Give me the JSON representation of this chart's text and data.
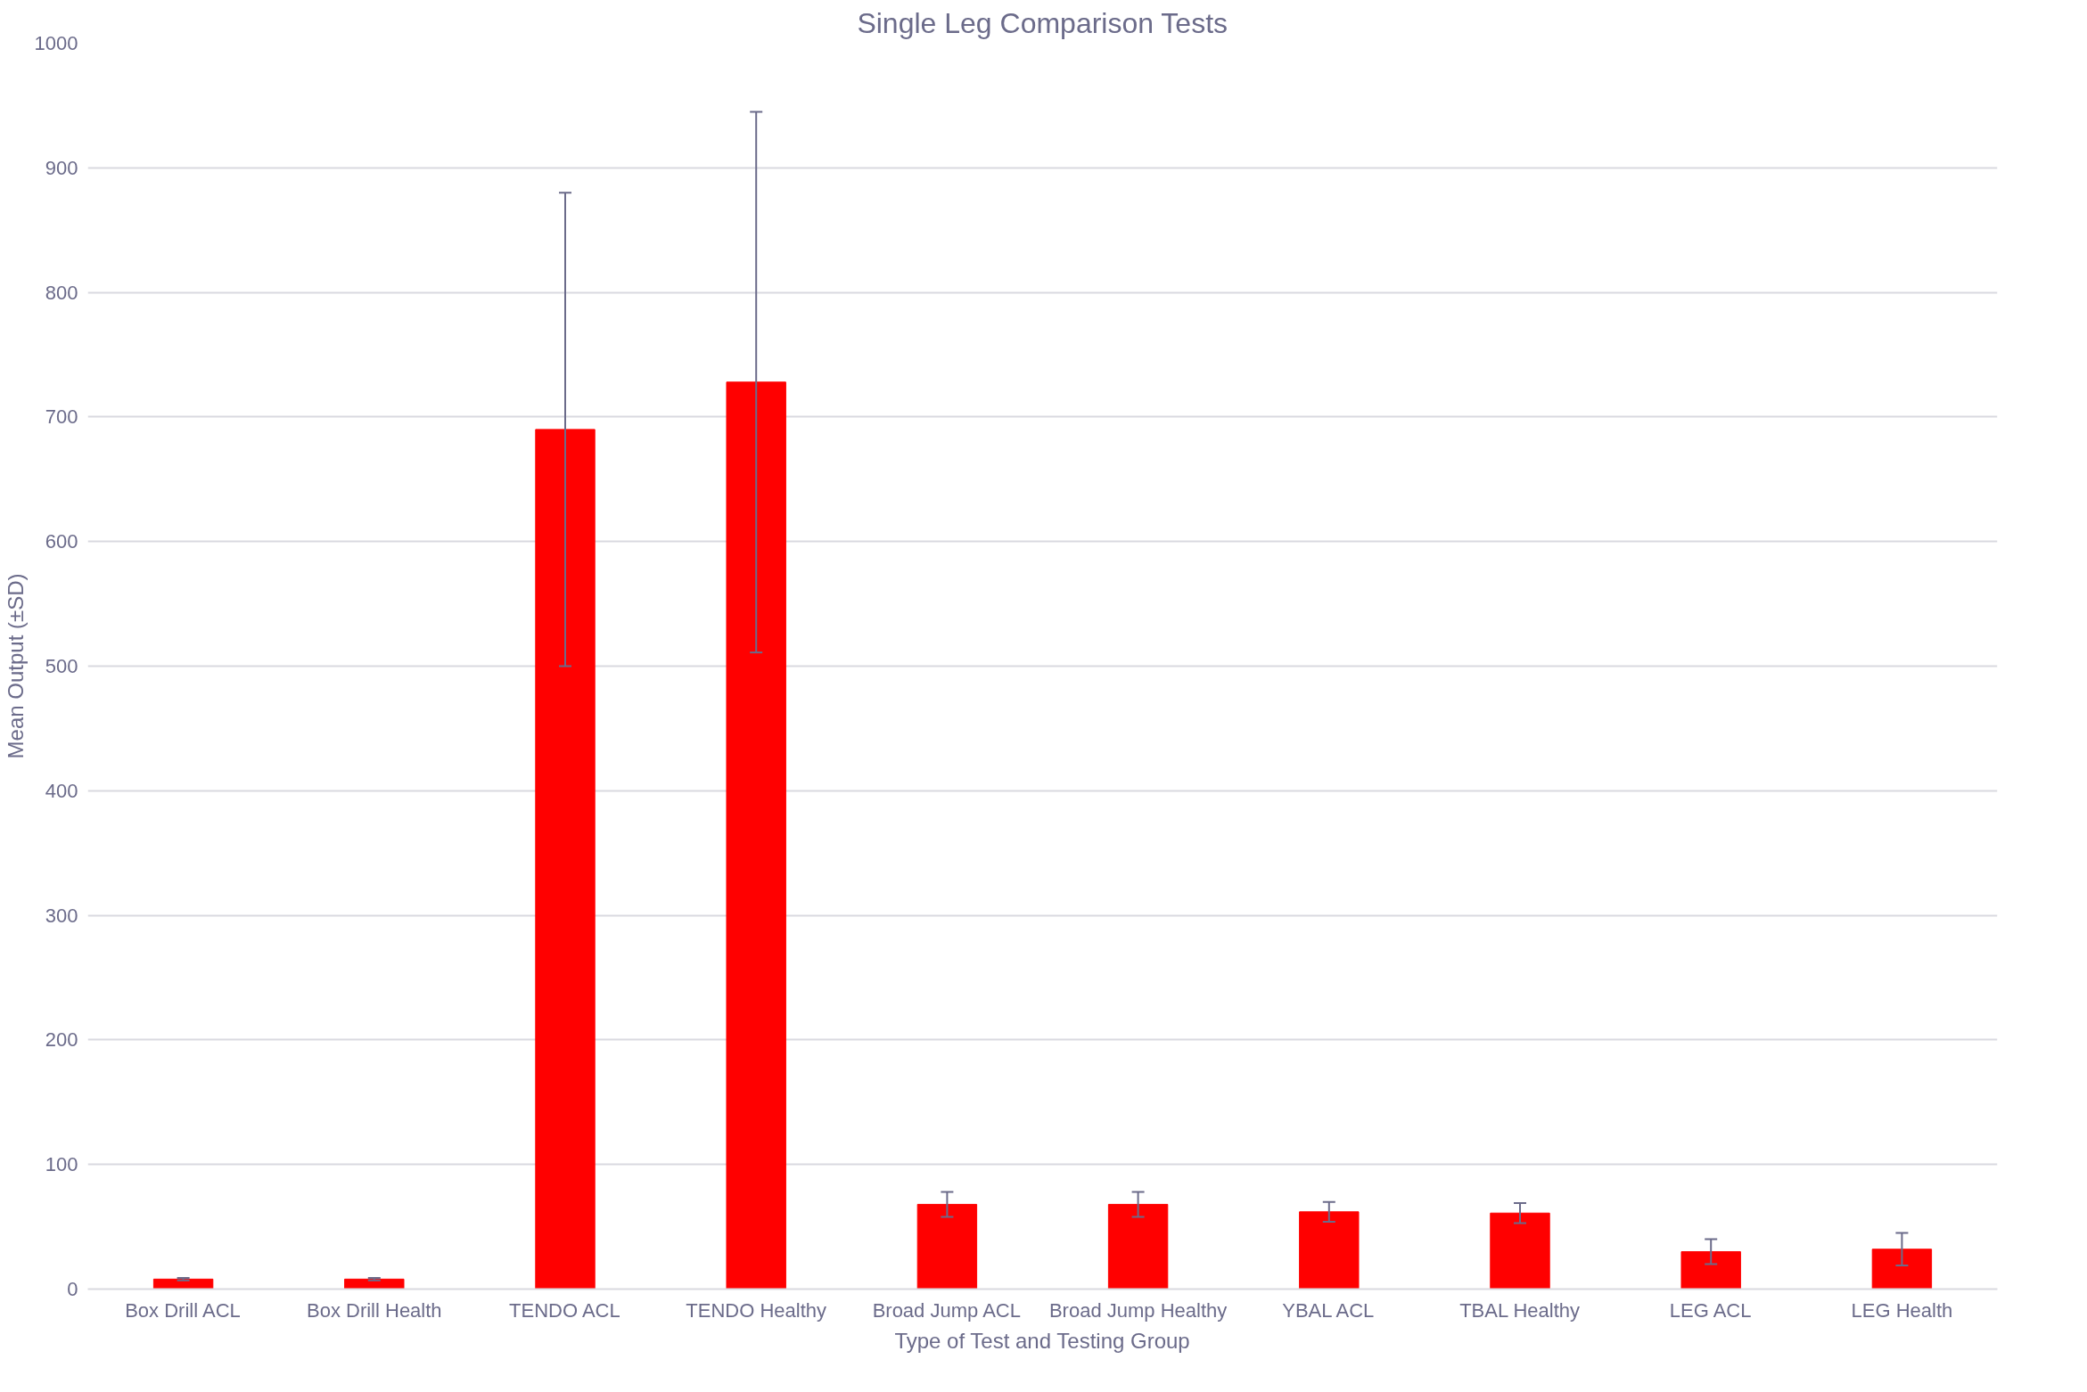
{
  "chart_data": {
    "type": "bar",
    "title": "Single Leg Comparison Tests",
    "xlabel": "Type of Test and Testing Group",
    "ylabel": "Mean Output (±SD)",
    "categories": [
      "Box Drill ACL",
      "Box Drill Health",
      "TENDO ACL",
      "TENDO Healthy",
      "Broad Jump ACL",
      "Broad Jump Healthy",
      "YBAL ACL",
      "TBAL Healthy",
      "LEG ACL",
      "LEG Health"
    ],
    "values": [
      8,
      8,
      690,
      728,
      68,
      68,
      62,
      61,
      30,
      32
    ],
    "errors": [
      1,
      1,
      190,
      217,
      10,
      10,
      8,
      8,
      10,
      13
    ],
    "color": "#ff0000",
    "ylim": [
      0,
      1000
    ],
    "yticks": [
      0,
      100,
      200,
      300,
      400,
      500,
      600,
      700,
      800,
      900,
      1000
    ],
    "grid": "y"
  }
}
